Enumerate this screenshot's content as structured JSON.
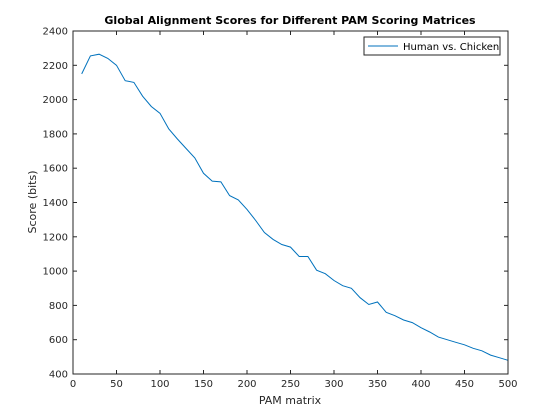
{
  "chart_data": {
    "type": "line",
    "title": "Global Alignment Scores for Different PAM Scoring Matrices",
    "xlabel": "PAM matrix",
    "ylabel": "Score (bits)",
    "xlim": [
      0,
      500
    ],
    "ylim": [
      400,
      2400
    ],
    "xticks": [
      0,
      50,
      100,
      150,
      200,
      250,
      300,
      350,
      400,
      450,
      500
    ],
    "yticks": [
      400,
      600,
      800,
      1000,
      1200,
      1400,
      1600,
      1800,
      2000,
      2200,
      2400
    ],
    "xtick_labels": [
      "0",
      "50",
      "100",
      "150",
      "200",
      "250",
      "300",
      "350",
      "400",
      "450",
      "500"
    ],
    "ytick_labels": [
      "400",
      "600",
      "800",
      "1000",
      "1200",
      "1400",
      "1600",
      "1800",
      "2000",
      "2200",
      "2400"
    ],
    "grid": false,
    "legend_position": "top-right",
    "series": [
      {
        "name": "Human vs. Chicken",
        "color": "#0072bd",
        "x": [
          10,
          20,
          30,
          40,
          50,
          60,
          70,
          80,
          90,
          100,
          110,
          120,
          130,
          140,
          150,
          160,
          170,
          180,
          190,
          200,
          210,
          220,
          230,
          240,
          250,
          260,
          270,
          280,
          290,
          300,
          310,
          320,
          330,
          340,
          350,
          360,
          370,
          380,
          390,
          400,
          410,
          420,
          430,
          440,
          450,
          460,
          470,
          480,
          490,
          500
        ],
        "y": [
          2150,
          2255,
          2265,
          2240,
          2200,
          2110,
          2100,
          2020,
          1960,
          1920,
          1830,
          1770,
          1715,
          1660,
          1570,
          1525,
          1520,
          1440,
          1415,
          1360,
          1295,
          1225,
          1185,
          1155,
          1140,
          1085,
          1085,
          1005,
          985,
          945,
          915,
          900,
          845,
          805,
          820,
          760,
          740,
          715,
          700,
          670,
          645,
          615,
          600,
          585,
          570,
          550,
          535,
          510,
          495,
          480
        ]
      }
    ]
  }
}
